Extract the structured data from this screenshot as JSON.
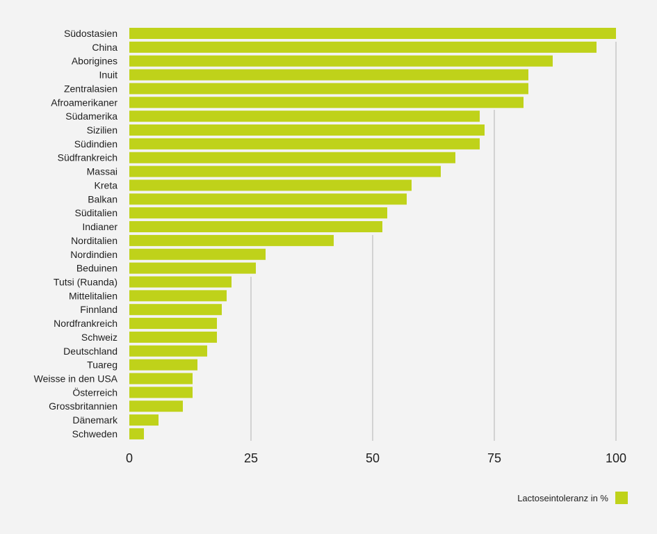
{
  "chart_data": {
    "type": "bar",
    "orientation": "horizontal",
    "categories": [
      "Südostasien",
      "China",
      "Aborigines",
      "Inuit",
      "Zentralasien",
      "Afroamerikaner",
      "Südamerika",
      "Sizilien",
      "Südindien",
      "Südfrankreich",
      "Massai",
      "Kreta",
      "Balkan",
      "Süditalien",
      "Indianer",
      "Norditalien",
      "Nordindien",
      "Beduinen",
      "Tutsi (Ruanda)",
      "Mittelitalien",
      "Finnland",
      "Nordfrankreich",
      "Schweiz",
      "Deutschland",
      "Tuareg",
      "Weisse in den USA",
      "Österreich",
      "Grossbritannien",
      "Dänemark",
      "Schweden"
    ],
    "series": [
      {
        "name": "Lactoseintoleranz in %",
        "values": [
          100,
          96,
          87,
          82,
          82,
          81,
          72,
          73,
          72,
          67,
          64,
          58,
          57,
          53,
          52,
          42,
          28,
          26,
          21,
          20,
          19,
          18,
          18,
          16,
          14,
          13,
          13,
          11,
          6,
          3
        ]
      }
    ],
    "xlim": [
      0,
      100
    ],
    "xticks": [
      0,
      25,
      50,
      75,
      100
    ],
    "grid": true,
    "legend_position": "bottom-right",
    "colors": {
      "bar": "#bfd21a",
      "grid": "#c8c8c8",
      "background": "#f3f3f3"
    }
  }
}
